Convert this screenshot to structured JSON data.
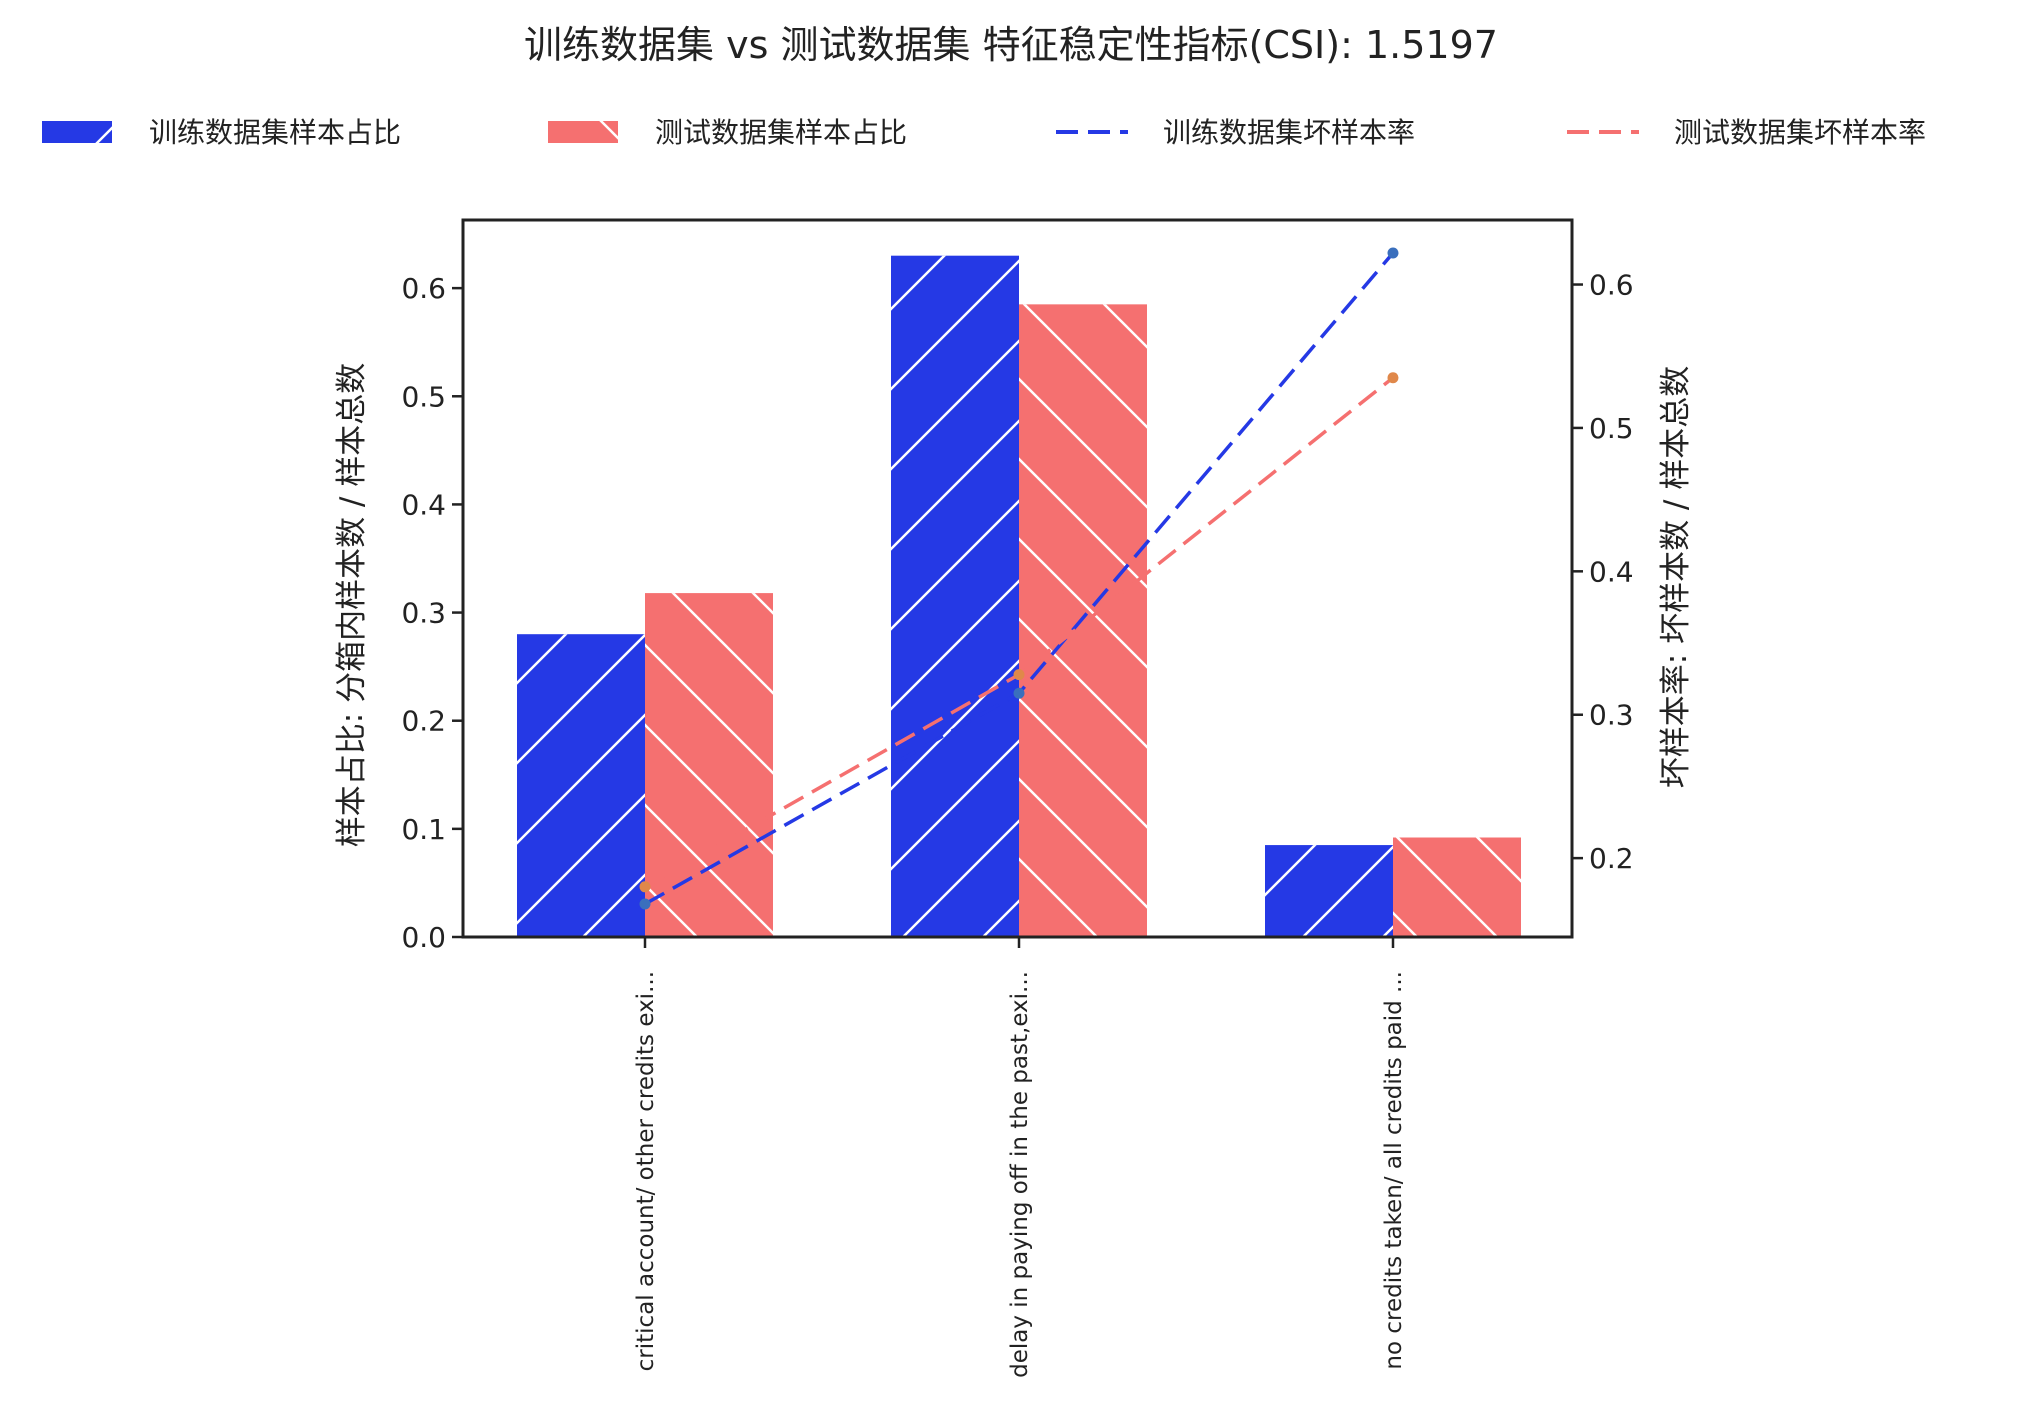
{
  "chart_data": {
    "type": "bar",
    "title": "训练数据集 vs 测试数据集 特征稳定性指标(CSI): 1.5197",
    "categories": [
      "critical account/ other credits exi...",
      "delay in paying off in the past,exi...",
      "no credits taken/ all credits paid ..."
    ],
    "series": [
      {
        "name": "训练数据集样本占比",
        "kind": "bar",
        "axis": "left",
        "color": "#2539e5",
        "hatch": "forward-diagonal",
        "values": [
          0.28,
          0.63,
          0.085
        ]
      },
      {
        "name": "测试数据集样本占比",
        "kind": "bar",
        "axis": "left",
        "color": "#f57070",
        "hatch": "back-diagonal",
        "values": [
          0.318,
          0.585,
          0.092
        ]
      },
      {
        "name": "训练数据集坏样本率",
        "kind": "line",
        "style": "dashed",
        "axis": "right",
        "color": "#2539e5",
        "marker_color": "#3a6fbd",
        "values": [
          0.168,
          0.315,
          0.622
        ]
      },
      {
        "name": "测试数据集坏样本率",
        "kind": "line",
        "style": "dashed",
        "axis": "right",
        "color": "#f57070",
        "marker_color": "#e0884a",
        "values": [
          0.18,
          0.328,
          0.535
        ]
      }
    ],
    "ylabel": "样本占比: 分箱内样本数 / 样本总数",
    "ylabel_right": "坏样本率: 坏样本数 / 样本总数",
    "ylim": [
      0,
      0.663
    ],
    "ylim_right": [
      0.145,
      0.645
    ],
    "yticks": [
      0.0,
      0.1,
      0.2,
      0.3,
      0.4,
      0.5,
      0.6
    ],
    "yticks_right": [
      0.2,
      0.3,
      0.4,
      0.5,
      0.6
    ],
    "legend_position": "top",
    "grid": false
  }
}
